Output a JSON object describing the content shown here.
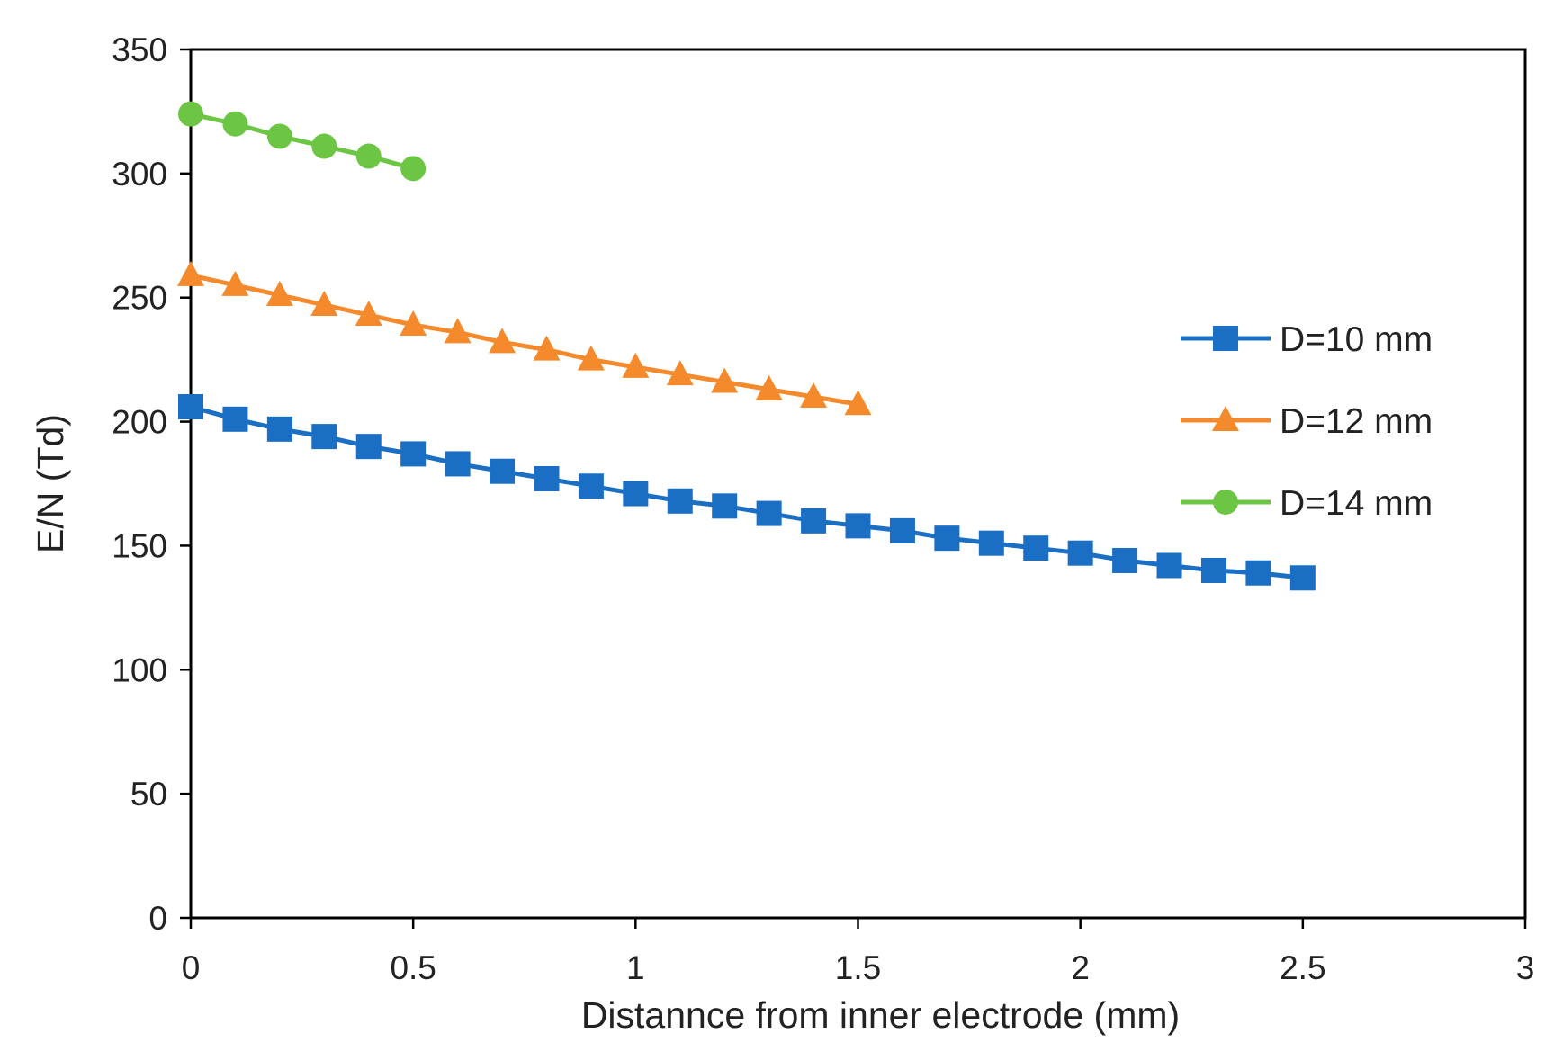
{
  "chart_data": {
    "type": "line",
    "title": "",
    "xlabel": "Distannce from inner electrode (mm)",
    "ylabel": "E/N (Td)",
    "xlim": [
      0,
      3
    ],
    "ylim": [
      0,
      350
    ],
    "xticks": [
      0,
      0.5,
      1,
      1.5,
      2,
      2.5,
      3
    ],
    "xtick_labels": [
      "0",
      "0.5",
      "1",
      "1.5",
      "2",
      "2.5",
      "3"
    ],
    "yticks": [
      0,
      50,
      100,
      150,
      200,
      250,
      300,
      350
    ],
    "ytick_labels": [
      "0",
      "50",
      "100",
      "150",
      "200",
      "250",
      "300",
      "350"
    ],
    "grid": false,
    "legend_position": "right",
    "series": [
      {
        "name": "D=10 mm",
        "color": "#1a6fc4",
        "marker": "square",
        "x": [
          0,
          0.1,
          0.2,
          0.3,
          0.4,
          0.5,
          0.6,
          0.7,
          0.8,
          0.9,
          1.0,
          1.1,
          1.2,
          1.3,
          1.4,
          1.5,
          1.6,
          1.7,
          1.8,
          1.9,
          2.0,
          2.1,
          2.2,
          2.3,
          2.4,
          2.5
        ],
        "y": [
          206,
          201,
          197,
          194,
          190,
          187,
          183,
          180,
          177,
          174,
          171,
          168,
          166,
          163,
          160,
          158,
          156,
          153,
          151,
          149,
          147,
          144,
          142,
          140,
          139,
          137
        ]
      },
      {
        "name": "D=12 mm",
        "color": "#f58a2c",
        "marker": "triangle",
        "x": [
          0,
          0.1,
          0.2,
          0.3,
          0.4,
          0.5,
          0.6,
          0.7,
          0.8,
          0.9,
          1.0,
          1.1,
          1.2,
          1.3,
          1.4,
          1.5
        ],
        "y": [
          259,
          255,
          251,
          247,
          243,
          239,
          236,
          232,
          229,
          225,
          222,
          219,
          216,
          213,
          210,
          207
        ]
      },
      {
        "name": "D=14 mm",
        "color": "#6cc644",
        "marker": "circle",
        "x": [
          0,
          0.1,
          0.2,
          0.3,
          0.4,
          0.5
        ],
        "y": [
          324,
          320,
          315,
          311,
          307,
          302
        ]
      }
    ]
  }
}
